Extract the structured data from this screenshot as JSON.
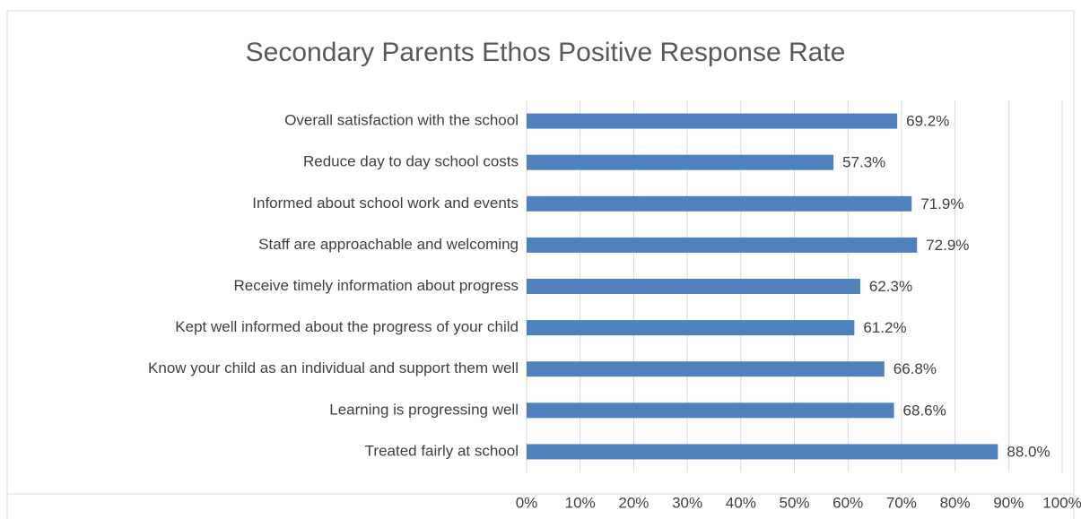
{
  "chart_data": {
    "type": "bar",
    "orientation": "horizontal",
    "title": "Secondary Parents Ethos Positive Response Rate",
    "categories": [
      "Overall satisfaction with the school",
      "Reduce day to day school costs",
      "Informed about school work and events",
      "Staff are approachable and welcoming",
      "Receive timely information about progress",
      "Kept well informed about the progress of your child",
      "Know your child as an individual and support them well",
      "Learning is progressing well",
      "Treated fairly at school"
    ],
    "values": [
      69.2,
      57.3,
      71.9,
      72.9,
      62.3,
      61.2,
      66.8,
      68.6,
      88.0
    ],
    "value_labels": [
      "69.2%",
      "57.3%",
      "71.9%",
      "72.9%",
      "62.3%",
      "61.2%",
      "66.8%",
      "68.6%",
      "88.0%"
    ],
    "color": "#4f81bd",
    "xlim": [
      0,
      100
    ],
    "xticks": [
      {
        "value": 0,
        "label": "0%"
      },
      {
        "value": 10,
        "label": "10%"
      },
      {
        "value": 20,
        "label": "20%"
      },
      {
        "value": 30,
        "label": "30%"
      },
      {
        "value": 40,
        "label": "40%"
      },
      {
        "value": 50,
        "label": "50%"
      },
      {
        "value": 60,
        "label": "60%"
      },
      {
        "value": 70,
        "label": "70%"
      },
      {
        "value": 80,
        "label": "80%"
      },
      {
        "value": 90,
        "label": "90%"
      },
      {
        "value": 100,
        "label": "100%"
      }
    ],
    "grid": true
  }
}
